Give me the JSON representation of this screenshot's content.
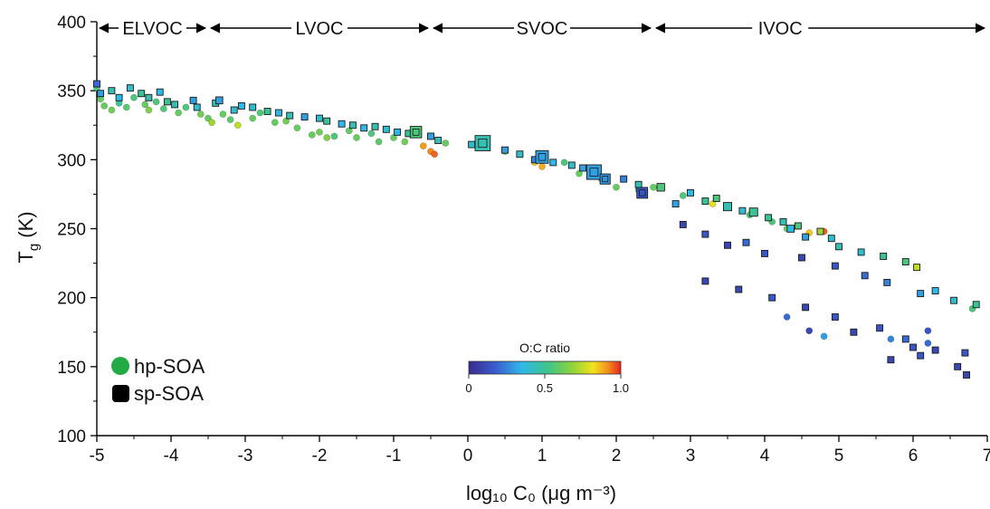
{
  "chart_data": {
    "type": "scatter",
    "xlabel": "log₁₀ C₀ (μg m⁻³)",
    "ylabel_main": "T",
    "ylabel_sub": "g",
    "ylabel_unit": " (K)",
    "xlim": [
      -5,
      7
    ],
    "ylim": [
      100,
      400
    ],
    "xticks": [
      -5,
      -4,
      -3,
      -2,
      -1,
      0,
      1,
      2,
      3,
      4,
      5,
      6,
      7
    ],
    "yticks": [
      100,
      150,
      200,
      250,
      300,
      350,
      400
    ],
    "volatility_classes": [
      {
        "label": "ELVOC",
        "x_start": -5,
        "x_end": -3.5
      },
      {
        "label": "LVOC",
        "x_start": -3.5,
        "x_end": -0.5
      },
      {
        "label": "SVOC",
        "x_start": -0.5,
        "x_end": 2.5
      },
      {
        "label": "IVOC",
        "x_start": 2.5,
        "x_end": 7
      }
    ],
    "legend": [
      {
        "label": "hp-SOA",
        "marker": "circle",
        "color": "#22aa44"
      },
      {
        "label": "sp-SOA",
        "marker": "square",
        "color": "#000000"
      }
    ],
    "colorbar": {
      "title": "O:C ratio",
      "ticks": [
        "0",
        "0.5",
        "1.0"
      ],
      "range": [
        0,
        1
      ]
    },
    "series": [
      {
        "name": "hp-SOA",
        "marker": "circle",
        "points": [
          [
            -5.0,
            352,
            0.55
          ],
          [
            -4.95,
            344,
            0.6
          ],
          [
            -4.9,
            339,
            0.6
          ],
          [
            -4.8,
            336,
            0.62
          ],
          [
            -4.7,
            341,
            0.5
          ],
          [
            -4.6,
            338,
            0.58
          ],
          [
            -4.5,
            345,
            0.55
          ],
          [
            -4.35,
            340,
            0.6
          ],
          [
            -4.3,
            336,
            0.65
          ],
          [
            -4.2,
            342,
            0.55
          ],
          [
            -4.1,
            337,
            0.55
          ],
          [
            -3.9,
            334,
            0.6
          ],
          [
            -3.8,
            338,
            0.55
          ],
          [
            -3.6,
            333,
            0.62
          ],
          [
            -3.5,
            330,
            0.6
          ],
          [
            -3.45,
            327,
            0.7
          ],
          [
            -3.3,
            333,
            0.6
          ],
          [
            -3.2,
            329,
            0.58
          ],
          [
            -3.1,
            325,
            0.75
          ],
          [
            -2.9,
            330,
            0.6
          ],
          [
            -2.8,
            334,
            0.55
          ],
          [
            -2.6,
            327,
            0.6
          ],
          [
            -2.45,
            328,
            0.62
          ],
          [
            -2.3,
            323,
            0.6
          ],
          [
            -2.1,
            318,
            0.6
          ],
          [
            -2.0,
            320,
            0.62
          ],
          [
            -1.9,
            316,
            0.65
          ],
          [
            -1.8,
            317,
            0.55
          ],
          [
            -1.6,
            321,
            0.6
          ],
          [
            -1.5,
            316,
            0.6
          ],
          [
            -1.3,
            319,
            0.55
          ],
          [
            -1.2,
            313,
            0.58
          ],
          [
            -1.0,
            316,
            0.6
          ],
          [
            -0.85,
            313,
            0.62
          ],
          [
            -0.7,
            320,
            0.58
          ],
          [
            -0.6,
            310,
            0.9
          ],
          [
            -0.5,
            306,
            0.92
          ],
          [
            -0.45,
            304,
            0.95
          ],
          [
            -0.3,
            312,
            0.6
          ],
          [
            0.2,
            309,
            0.55
          ],
          [
            0.5,
            306,
            0.6
          ],
          [
            0.9,
            298,
            0.85
          ],
          [
            1.0,
            295,
            0.88
          ],
          [
            1.3,
            298,
            0.55
          ],
          [
            1.5,
            290,
            0.6
          ],
          [
            1.8,
            286,
            0.55
          ],
          [
            2.0,
            280,
            0.6
          ],
          [
            2.3,
            278,
            0.55
          ],
          [
            2.5,
            280,
            0.6
          ],
          [
            2.9,
            274,
            0.55
          ],
          [
            3.2,
            270,
            0.75
          ],
          [
            3.3,
            268,
            0.8
          ],
          [
            3.5,
            266,
            0.6
          ],
          [
            3.8,
            260,
            0.55
          ],
          [
            4.1,
            255,
            0.55
          ],
          [
            4.3,
            250,
            0.6
          ],
          [
            4.6,
            247,
            0.85
          ],
          [
            4.8,
            248,
            0.95
          ],
          [
            4.6,
            176,
            0.1
          ],
          [
            4.8,
            172,
            0.3
          ],
          [
            4.3,
            186,
            0.2
          ],
          [
            5.7,
            170,
            0.25
          ],
          [
            6.2,
            176,
            0.15
          ],
          [
            6.2,
            167,
            0.2
          ],
          [
            6.8,
            192,
            0.55
          ]
        ]
      },
      {
        "name": "sp-SOA",
        "marker": "square",
        "points": [
          [
            -5.0,
            355,
            0.2,
            1
          ],
          [
            -4.95,
            348,
            0.3,
            1
          ],
          [
            -4.8,
            350,
            0.45,
            1
          ],
          [
            -4.7,
            345,
            0.35,
            1
          ],
          [
            -4.55,
            352,
            0.4,
            1
          ],
          [
            -4.4,
            348,
            0.5,
            1
          ],
          [
            -4.3,
            345,
            0.45,
            1
          ],
          [
            -4.15,
            349,
            0.35,
            1
          ],
          [
            -4.05,
            342,
            0.5,
            1
          ],
          [
            -3.95,
            340,
            0.45,
            1
          ],
          [
            -3.7,
            343,
            0.3,
            1
          ],
          [
            -3.65,
            338,
            0.4,
            1
          ],
          [
            -3.4,
            341,
            0.45,
            1
          ],
          [
            -3.35,
            343,
            0.3,
            1.1
          ],
          [
            -3.15,
            336,
            0.4,
            1
          ],
          [
            -3.05,
            339,
            0.35,
            1
          ],
          [
            -2.9,
            338,
            0.4,
            1
          ],
          [
            -2.7,
            335,
            0.5,
            1
          ],
          [
            -2.55,
            334,
            0.35,
            1
          ],
          [
            -2.4,
            332,
            0.45,
            1
          ],
          [
            -2.2,
            331,
            0.3,
            1
          ],
          [
            -2.0,
            330,
            0.4,
            1
          ],
          [
            -1.9,
            328,
            0.5,
            1
          ],
          [
            -1.7,
            326,
            0.35,
            1
          ],
          [
            -1.55,
            325,
            0.45,
            1
          ],
          [
            -1.4,
            323,
            0.35,
            1
          ],
          [
            -1.25,
            324,
            0.45,
            1
          ],
          [
            -1.1,
            322,
            0.4,
            1
          ],
          [
            -0.95,
            320,
            0.35,
            1
          ],
          [
            -0.8,
            319,
            0.5,
            1
          ],
          [
            -0.7,
            320,
            0.55,
            1.8
          ],
          [
            -0.5,
            317,
            0.3,
            1
          ],
          [
            -0.4,
            314,
            0.45,
            1
          ],
          [
            0.05,
            311,
            0.4,
            1
          ],
          [
            0.2,
            312,
            0.45,
            2.4
          ],
          [
            0.5,
            307,
            0.3,
            1
          ],
          [
            0.7,
            304,
            0.4,
            1
          ],
          [
            0.9,
            300,
            0.25,
            1
          ],
          [
            1.0,
            302,
            0.3,
            2.0
          ],
          [
            1.15,
            298,
            0.35,
            1
          ],
          [
            1.4,
            296,
            0.4,
            1
          ],
          [
            1.55,
            294,
            0.3,
            1
          ],
          [
            1.7,
            291,
            0.3,
            2.3
          ],
          [
            1.85,
            286,
            0.28,
            1.6
          ],
          [
            2.1,
            286,
            0.25,
            1
          ],
          [
            2.3,
            282,
            0.45,
            1
          ],
          [
            2.35,
            276,
            0.15,
            1.7
          ],
          [
            2.6,
            280,
            0.55,
            1.2
          ],
          [
            2.8,
            268,
            0.3,
            1
          ],
          [
            3.0,
            276,
            0.35,
            1
          ],
          [
            3.2,
            270,
            0.5,
            1
          ],
          [
            3.35,
            272,
            0.55,
            1
          ],
          [
            3.5,
            266,
            0.45,
            1.3
          ],
          [
            3.7,
            263,
            0.4,
            1
          ],
          [
            3.85,
            262,
            0.5,
            1.3
          ],
          [
            4.05,
            258,
            0.5,
            1
          ],
          [
            4.25,
            255,
            0.45,
            1
          ],
          [
            4.35,
            250,
            0.35,
            1.1
          ],
          [
            4.45,
            252,
            0.55,
            1
          ],
          [
            4.55,
            244,
            0.3,
            1
          ],
          [
            4.75,
            248,
            0.7,
            1
          ],
          [
            4.9,
            243,
            0.4,
            1
          ],
          [
            5.0,
            237,
            0.45,
            1
          ],
          [
            5.3,
            233,
            0.4,
            1
          ],
          [
            5.6,
            230,
            0.5,
            1
          ],
          [
            5.9,
            226,
            0.55,
            1
          ],
          [
            6.05,
            222,
            0.75,
            1
          ],
          [
            6.3,
            205,
            0.35,
            1
          ],
          [
            6.55,
            198,
            0.4,
            1
          ],
          [
            6.85,
            195,
            0.5,
            1
          ],
          [
            2.9,
            253,
            0.1,
            1
          ],
          [
            3.2,
            246,
            0.15,
            1
          ],
          [
            3.5,
            238,
            0.1,
            1
          ],
          [
            3.75,
            240,
            0.2,
            1
          ],
          [
            4.0,
            232,
            0.15,
            1
          ],
          [
            4.5,
            229,
            0.1,
            1
          ],
          [
            4.95,
            223,
            0.15,
            1
          ],
          [
            5.35,
            216,
            0.2,
            1
          ],
          [
            5.65,
            211,
            0.25,
            1
          ],
          [
            6.1,
            203,
            0.3,
            1
          ],
          [
            3.2,
            212,
            0.1,
            1
          ],
          [
            3.65,
            206,
            0.1,
            1
          ],
          [
            4.1,
            200,
            0.15,
            1
          ],
          [
            4.55,
            193,
            0.1,
            1
          ],
          [
            4.95,
            186,
            0.15,
            1
          ],
          [
            5.2,
            175,
            0.1,
            1
          ],
          [
            5.55,
            178,
            0.15,
            1
          ],
          [
            5.9,
            170,
            0.2,
            1
          ],
          [
            6.0,
            164,
            0.15,
            1
          ],
          [
            6.3,
            162,
            0.1,
            1
          ],
          [
            5.7,
            155,
            0.1,
            1
          ],
          [
            6.1,
            158,
            0.15,
            1
          ],
          [
            6.6,
            150,
            0.1,
            1
          ],
          [
            6.7,
            160,
            0.15,
            1
          ],
          [
            6.72,
            144,
            0.1,
            1
          ]
        ]
      }
    ]
  }
}
